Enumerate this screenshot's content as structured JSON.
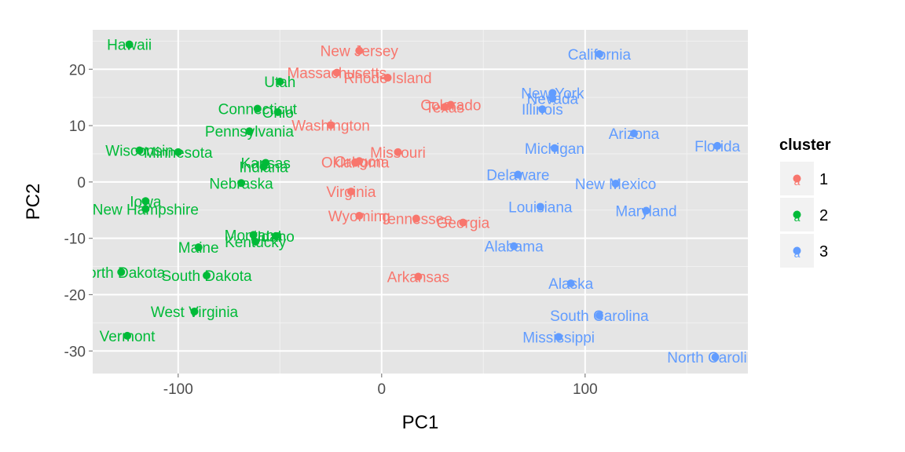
{
  "chart_data": {
    "type": "scatter",
    "xlabel": "PC1",
    "ylabel": "PC2",
    "xlim": [
      -142,
      180
    ],
    "ylim": [
      -34,
      27
    ],
    "x_ticks": [
      -100,
      0,
      100
    ],
    "y_ticks": [
      -30,
      -20,
      -10,
      0,
      10,
      20
    ],
    "grid": true,
    "legend_position": "right",
    "legend": {
      "title": "cluster",
      "entries": [
        {
          "label": "1",
          "color": "#F8766D"
        },
        {
          "label": "2",
          "color": "#00BA38"
        },
        {
          "label": "3",
          "color": "#619CFF"
        }
      ]
    },
    "series": [
      {
        "name": "1",
        "color": "#F8766D",
        "points": [
          {
            "label": "New Jersey",
            "x": -11,
            "y": 23.3
          },
          {
            "label": "Massachusetts",
            "x": -22,
            "y": 19.4
          },
          {
            "label": "Rhode Island",
            "x": 3,
            "y": 18.5
          },
          {
            "label": "Colorado",
            "x": 34,
            "y": 13.7
          },
          {
            "label": "Texas",
            "x": 31,
            "y": 13.3
          },
          {
            "label": "Washington",
            "x": -25,
            "y": 10.1
          },
          {
            "label": "Missouri",
            "x": 8,
            "y": 5.3
          },
          {
            "label": "Oregon",
            "x": -11,
            "y": 3.7
          },
          {
            "label": "Oklahoma",
            "x": -13,
            "y": 3.5
          },
          {
            "label": "Virginia",
            "x": -15,
            "y": -1.7
          },
          {
            "label": "Wyoming",
            "x": -11,
            "y": -6.0
          },
          {
            "label": "Tennessee",
            "x": 17,
            "y": -6.5
          },
          {
            "label": "Georgia",
            "x": 40,
            "y": -7.2
          },
          {
            "label": "Arkansas",
            "x": 18,
            "y": -16.8
          }
        ]
      },
      {
        "name": "2",
        "color": "#00BA38",
        "points": [
          {
            "label": "Hawaii",
            "x": -124,
            "y": 24.4
          },
          {
            "label": "Utah",
            "x": -50,
            "y": 17.8
          },
          {
            "label": "Connecticut",
            "x": -61,
            "y": 13.0
          },
          {
            "label": "Ohio",
            "x": -51,
            "y": 12.4
          },
          {
            "label": "Pennsylvania",
            "x": -65,
            "y": 9.0
          },
          {
            "label": "Wisconsin",
            "x": -119,
            "y": 5.6
          },
          {
            "label": "Minnesota",
            "x": -100,
            "y": 5.3
          },
          {
            "label": "Kansas",
            "x": -57,
            "y": 3.4
          },
          {
            "label": "Indiana",
            "x": -58,
            "y": 2.7
          },
          {
            "label": "Nebraska",
            "x": -69,
            "y": -0.2
          },
          {
            "label": "Iowa",
            "x": -116,
            "y": -3.4
          },
          {
            "label": "New Hampshire",
            "x": -116,
            "y": -4.8
          },
          {
            "label": "Montana",
            "x": -63,
            "y": -9.4
          },
          {
            "label": "Idaho",
            "x": -52,
            "y": -9.6
          },
          {
            "label": "Kentucky",
            "x": -62,
            "y": -10.6
          },
          {
            "label": "Maine",
            "x": -90,
            "y": -11.6
          },
          {
            "label": "North Dakota",
            "x": -128,
            "y": -16.0
          },
          {
            "label": "South Dakota",
            "x": -86,
            "y": -16.6
          },
          {
            "label": "West Virginia",
            "x": -92,
            "y": -23.0
          },
          {
            "label": "Vermont",
            "x": -125,
            "y": -27.3
          }
        ]
      },
      {
        "name": "3",
        "color": "#619CFF",
        "points": [
          {
            "label": "California",
            "x": 107,
            "y": 22.7
          },
          {
            "label": "New York",
            "x": 84,
            "y": 15.8
          },
          {
            "label": "Nevada",
            "x": 84,
            "y": 14.8
          },
          {
            "label": "Illinois",
            "x": 79,
            "y": 12.9
          },
          {
            "label": "Arizona",
            "x": 124,
            "y": 8.6
          },
          {
            "label": "Florida",
            "x": 165,
            "y": 6.4
          },
          {
            "label": "Michigan",
            "x": 85,
            "y": 6.0
          },
          {
            "label": "Delaware",
            "x": 67,
            "y": 1.3
          },
          {
            "label": "New Mexico",
            "x": 115,
            "y": -0.3
          },
          {
            "label": "Louisiana",
            "x": 78,
            "y": -4.4
          },
          {
            "label": "Maryland",
            "x": 130,
            "y": -5.1
          },
          {
            "label": "Alabama",
            "x": 65,
            "y": -11.4
          },
          {
            "label": "Alaska",
            "x": 93,
            "y": -18.0
          },
          {
            "label": "South Carolina",
            "x": 107,
            "y": -23.7
          },
          {
            "label": "Mississippi",
            "x": 87,
            "y": -27.5
          },
          {
            "label": "North Carolina",
            "x": 164,
            "y": -31.1
          }
        ]
      }
    ]
  }
}
